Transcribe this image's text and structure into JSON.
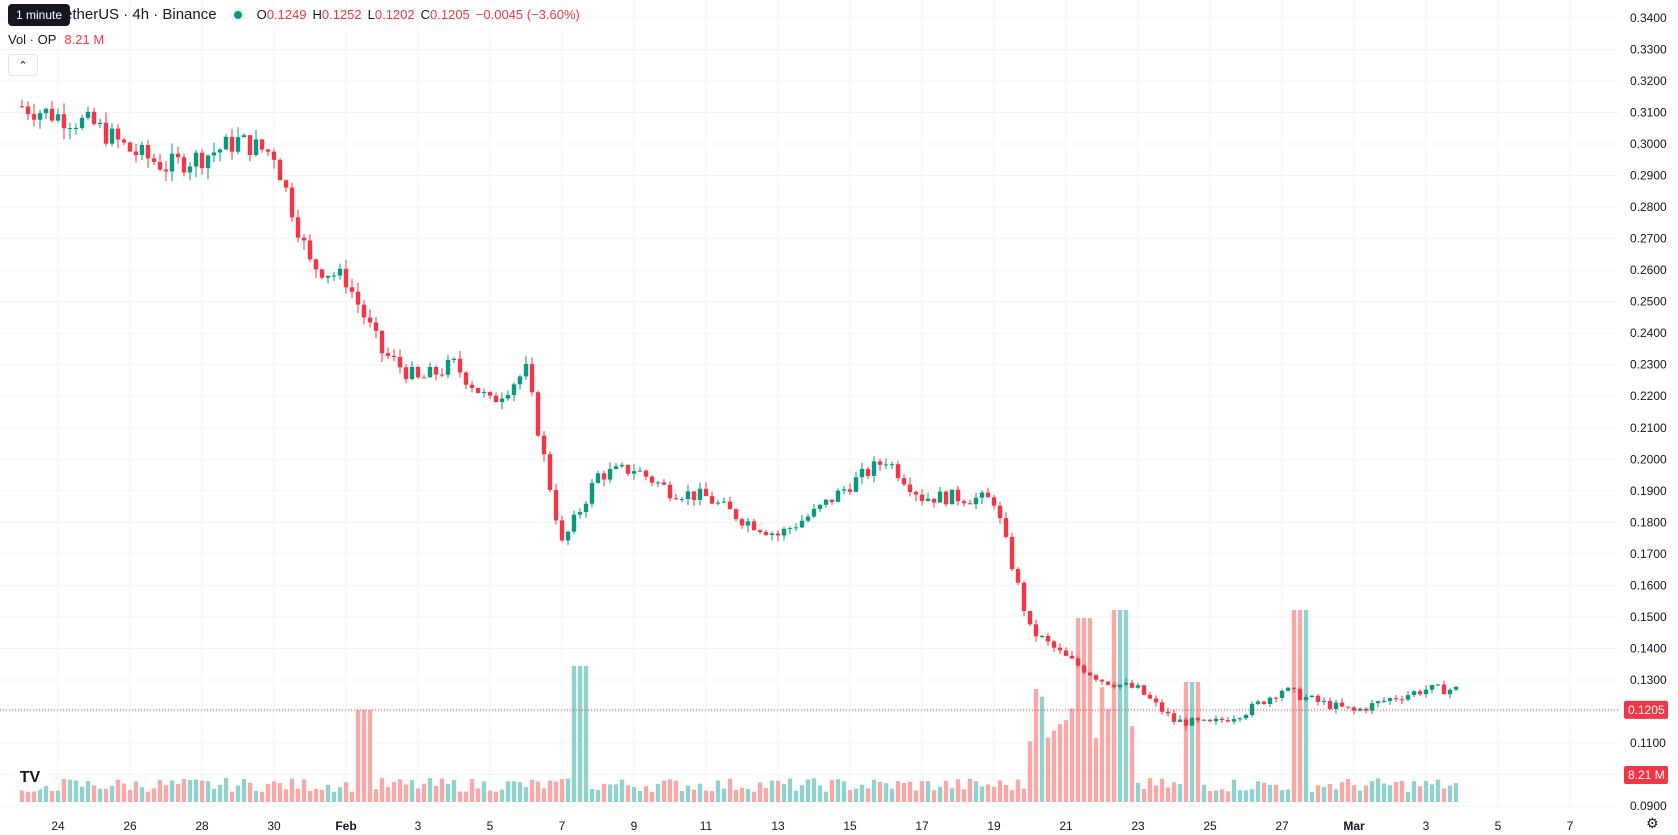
{
  "header": {
    "tooltip": "1 minute",
    "symbol_title": "etherUS · 4h · Binance",
    "open_label": "O",
    "open_value": "0.1249",
    "high_label": "H",
    "high_value": "0.1252",
    "low_label": "L",
    "low_value": "0.1202",
    "close_label": "C",
    "close_value": "0.1205",
    "change": "−0.0045 (−3.60%)"
  },
  "volume_legend": {
    "label": "Vol · OP",
    "value": "8.21 M"
  },
  "colors": {
    "up": "#089981",
    "down": "#f23645",
    "up_volume": "#92d2cc",
    "down_volume": "#f7a9a7",
    "grid": "#f0f3fa",
    "text": "#131722"
  },
  "icons": {
    "collapse": "chevron-up-icon",
    "logo": "tradingview-logo-icon",
    "settings": "gear-icon"
  },
  "chart_data": {
    "type": "candlestick",
    "timeframe": "4h",
    "x_tick_labels": [
      "24",
      "26",
      "28",
      "30",
      "Feb",
      "3",
      "5",
      "7",
      "9",
      "11",
      "13",
      "15",
      "17",
      "19",
      "21",
      "23",
      "25",
      "27",
      "Mar",
      "3",
      "5",
      "7"
    ],
    "y_tick_labels": [
      "0.3400",
      "0.3300",
      "0.3200",
      "0.3100",
      "0.3000",
      "0.2900",
      "0.2800",
      "0.2700",
      "0.2600",
      "0.2500",
      "0.2400",
      "0.2300",
      "0.2200",
      "0.2100",
      "0.2000",
      "0.1900",
      "0.1800",
      "0.1700",
      "0.1600",
      "0.1500",
      "0.1400",
      "0.1300",
      "0.1200",
      "0.1100",
      "0.1000",
      "0.0900"
    ],
    "ylim": [
      0.09,
      0.34
    ],
    "last_price": "0.1205",
    "last_volume": "8.21 M",
    "grid": true,
    "close_path_anchors": [
      [
        "Jan 22",
        0.312
      ],
      [
        "Jan 23",
        0.309
      ],
      [
        "Jan 24",
        0.306
      ],
      [
        "Jan 25",
        0.298
      ],
      [
        "Jan 26",
        0.293
      ],
      [
        "Jan 27",
        0.296
      ],
      [
        "Jan 28",
        0.301
      ],
      [
        "Jan 29",
        0.297
      ],
      [
        "Jan 30",
        0.262
      ],
      [
        "Jan 31",
        0.257
      ],
      [
        "Feb 1",
        0.234
      ],
      [
        "Feb 2",
        0.225
      ],
      [
        "Feb 3",
        0.23
      ],
      [
        "Feb 4",
        0.218
      ],
      [
        "Feb 5",
        0.228
      ],
      [
        "Feb 6",
        0.173
      ],
      [
        "Feb 7",
        0.195
      ],
      [
        "Feb 8",
        0.197
      ],
      [
        "Feb 9",
        0.19
      ],
      [
        "Feb 10",
        0.188
      ],
      [
        "Feb 11",
        0.181
      ],
      [
        "Feb 12",
        0.176
      ],
      [
        "Feb 13",
        0.183
      ],
      [
        "Feb 14",
        0.192
      ],
      [
        "Feb 15",
        0.2
      ],
      [
        "Feb 16",
        0.188
      ],
      [
        "Feb 17",
        0.188
      ],
      [
        "Feb 18",
        0.187
      ],
      [
        "Feb 19",
        0.146
      ],
      [
        "Feb 20",
        0.137
      ],
      [
        "Feb 21",
        0.13
      ],
      [
        "Feb 22",
        0.127
      ],
      [
        "Feb 23",
        0.117
      ],
      [
        "Feb 24",
        0.116
      ],
      [
        "Feb 25",
        0.12
      ],
      [
        "Feb 26",
        0.127
      ],
      [
        "Feb 27",
        0.123
      ],
      [
        "Feb 28",
        0.12
      ],
      [
        "Mar 1",
        0.124
      ],
      [
        "Mar 2",
        0.127
      ],
      [
        "Mar 3",
        0.127
      ],
      [
        "Mar 4",
        0.13
      ],
      [
        "Mar 5",
        0.128
      ],
      [
        "Mar 6",
        0.1205
      ]
    ],
    "volume_spikes": [
      [
        "Jan 31",
        2.3
      ],
      [
        "Feb 6",
        3.4
      ],
      [
        "Feb 19",
        1.3
      ],
      [
        "Feb 20",
        4.6
      ],
      [
        "Feb 21",
        4.8
      ],
      [
        "Feb 23",
        3.0
      ],
      [
        "Feb 26",
        4.8
      ],
      [
        "Mar 6",
        0.8
      ]
    ]
  }
}
